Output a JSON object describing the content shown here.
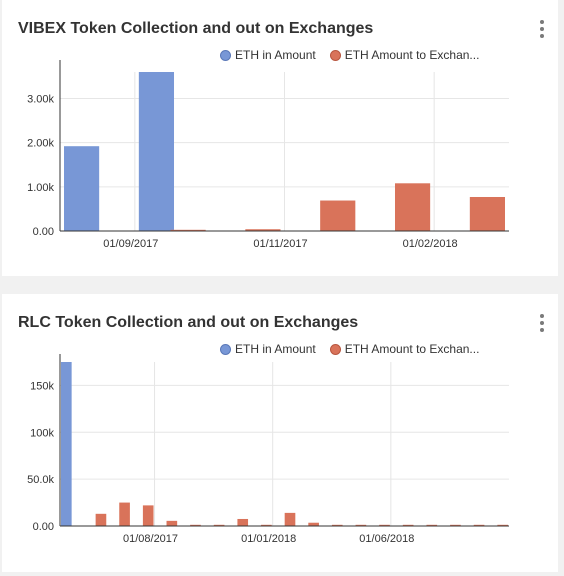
{
  "chart_data": [
    {
      "type": "bar",
      "title": "VIBEX Token Collection and out on Exchanges",
      "xlabel": "",
      "ylabel": "",
      "ylim": [
        0,
        3600
      ],
      "yticks": [
        0,
        1000,
        2000,
        3000
      ],
      "ytick_labels": [
        "0.00",
        "1.00k",
        "2.00k",
        "3.00k"
      ],
      "xtick_labels": [
        "01/09/2017",
        "01/11/2017",
        "01/02/2018"
      ],
      "xtick_after_category": [
        1,
        3,
        5
      ],
      "legend": "top",
      "grid": true,
      "categories": [
        "1",
        "2",
        "3",
        "4",
        "5",
        "6"
      ],
      "series": [
        {
          "name": "ETH in Amount",
          "values": [
            1920,
            3600,
            0,
            0,
            0,
            0
          ]
        },
        {
          "name": "ETH Amount to Exchan...",
          "values": [
            0,
            20,
            40,
            690,
            1080,
            770
          ]
        }
      ],
      "colors": [
        "#7897d6",
        "#d9735a"
      ]
    },
    {
      "type": "bar",
      "title": "RLC Token Collection and out on Exchanges",
      "xlabel": "",
      "ylabel": "",
      "ylim": [
        0,
        175000
      ],
      "yticks": [
        0,
        50000,
        100000,
        150000
      ],
      "ytick_labels": [
        "0.00",
        "50.0k",
        "100k",
        "150k"
      ],
      "xtick_labels": [
        "01/08/2017",
        "01/01/2018",
        "01/06/2018"
      ],
      "xtick_after_category": [
        4,
        9,
        14
      ],
      "legend": "top",
      "grid": true,
      "categories": [
        "1",
        "2",
        "3",
        "4",
        "5",
        "6",
        "7",
        "8",
        "9",
        "10",
        "11",
        "12",
        "13",
        "14",
        "15",
        "16",
        "17",
        "18",
        "19"
      ],
      "series": [
        {
          "name": "ETH in Amount",
          "values": [
            175000,
            0,
            0,
            0,
            0,
            0,
            0,
            0,
            0,
            0,
            0,
            0,
            0,
            0,
            0,
            0,
            0,
            0,
            0
          ]
        },
        {
          "name": "ETH Amount to Exchan...",
          "values": [
            0,
            13000,
            25000,
            22000,
            5500,
            1000,
            500,
            7500,
            1000,
            14000,
            3500,
            600,
            300,
            200,
            150,
            100,
            100,
            100,
            100
          ]
        }
      ],
      "colors": [
        "#7897d6",
        "#d9735a"
      ]
    }
  ]
}
